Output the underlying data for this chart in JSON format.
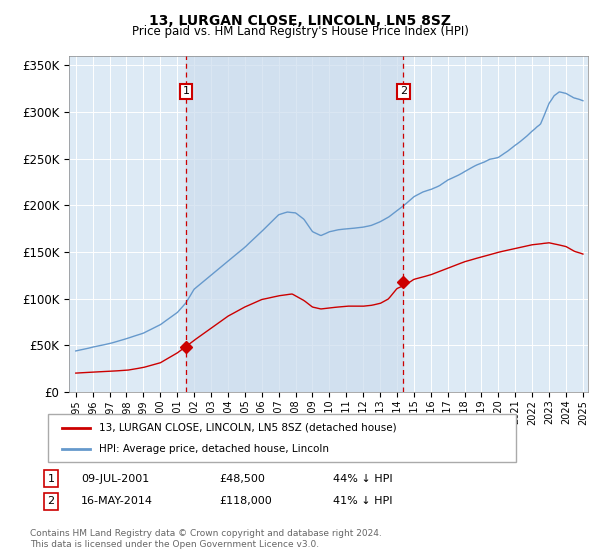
{
  "title": "13, LURGAN CLOSE, LINCOLN, LN5 8SZ",
  "subtitle": "Price paid vs. HM Land Registry's House Price Index (HPI)",
  "legend_line1": "13, LURGAN CLOSE, LINCOLN, LN5 8SZ (detached house)",
  "legend_line2": "HPI: Average price, detached house, Lincoln",
  "sale1_date": "09-JUL-2001",
  "sale1_price": 48500,
  "sale1_label": "£48,500",
  "sale1_pct": "44% ↓ HPI",
  "sale1_year": 2001.52,
  "sale2_date": "16-MAY-2014",
  "sale2_price": 118000,
  "sale2_label": "£118,000",
  "sale2_pct": "41% ↓ HPI",
  "sale2_year": 2014.37,
  "ylim": [
    0,
    360000
  ],
  "xlim_start": 1994.6,
  "xlim_end": 2025.3,
  "plot_bg": "#ddeaf5",
  "shade_color": "#ccdded",
  "red_color": "#cc0000",
  "blue_color": "#6699cc",
  "footnote": "Contains HM Land Registry data © Crown copyright and database right 2024.\nThis data is licensed under the Open Government Licence v3.0.",
  "hpi_anchors_x": [
    1995,
    1995.5,
    1996,
    1997,
    1998,
    1999,
    2000,
    2001,
    2001.5,
    2002,
    2003,
    2004,
    2005,
    2006,
    2007,
    2007.5,
    2008,
    2008.5,
    2009,
    2009.5,
    2010,
    2010.5,
    2011,
    2011.5,
    2012,
    2012.5,
    2013,
    2013.5,
    2014,
    2014.5,
    2015,
    2015.5,
    2016,
    2016.5,
    2017,
    2017.5,
    2018,
    2018.5,
    2019,
    2019.5,
    2020,
    2020.5,
    2021,
    2021.5,
    2022,
    2022.5,
    2023,
    2023.3,
    2023.6,
    2024,
    2024.5,
    2025
  ],
  "hpi_anchors_y": [
    44000,
    46000,
    48000,
    52000,
    57000,
    63000,
    72000,
    85000,
    95000,
    110000,
    125000,
    140000,
    155000,
    172000,
    190000,
    193000,
    192000,
    185000,
    172000,
    168000,
    172000,
    174000,
    175000,
    176000,
    177000,
    179000,
    183000,
    188000,
    195000,
    202000,
    210000,
    215000,
    218000,
    222000,
    228000,
    232000,
    237000,
    242000,
    246000,
    250000,
    252000,
    258000,
    265000,
    272000,
    280000,
    288000,
    310000,
    318000,
    322000,
    320000,
    315000,
    312000
  ],
  "prop_anchors_x": [
    1995,
    1996,
    1997,
    1998,
    1999,
    2000,
    2001,
    2001.5,
    2002,
    2003,
    2004,
    2005,
    2006,
    2007,
    2007.8,
    2008.5,
    2009,
    2009.5,
    2010,
    2011,
    2012,
    2012.5,
    2013,
    2013.5,
    2014,
    2014.5,
    2015,
    2016,
    2017,
    2018,
    2019,
    2020,
    2021,
    2022,
    2022.5,
    2023,
    2023.5,
    2024,
    2024.5,
    2025
  ],
  "prop_anchors_y": [
    27000,
    28000,
    29000,
    30000,
    33000,
    38000,
    48500,
    55000,
    62000,
    75000,
    88000,
    98000,
    106000,
    110000,
    112000,
    105000,
    98000,
    96000,
    97000,
    99000,
    99000,
    100000,
    102000,
    107000,
    118000,
    122000,
    128000,
    133000,
    140000,
    147000,
    152000,
    157000,
    161000,
    165000,
    166000,
    167000,
    165000,
    163000,
    158000,
    155000
  ]
}
